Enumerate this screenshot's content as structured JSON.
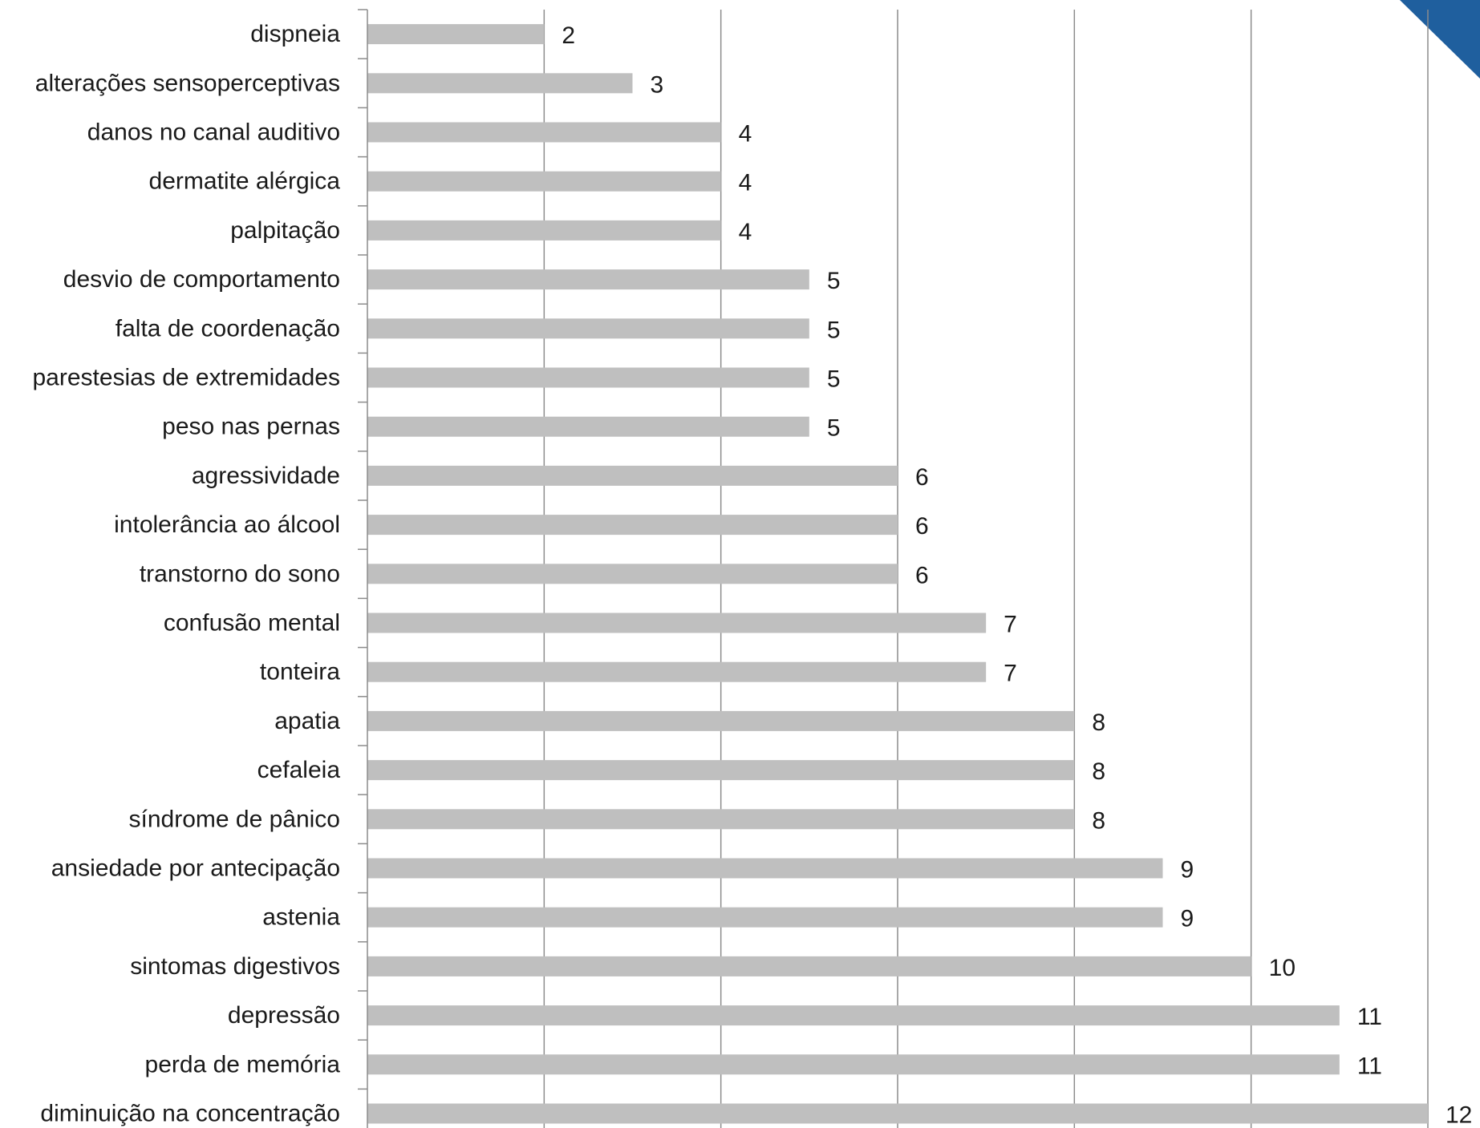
{
  "chart_data": {
    "type": "bar",
    "orientation": "horizontal",
    "title": "",
    "xlabel": "",
    "ylabel": "",
    "xlim": [
      0,
      12
    ],
    "grid": true,
    "gridline_step": 2,
    "bar_color": "#bfbfbf",
    "gridline_color": "#8c8c8c",
    "corner_accent_color": "#1f5f9e",
    "show_data_labels": true,
    "categories": [
      "dispneia",
      "alterações sensoperceptivas",
      "danos no canal auditivo",
      "dermatite alérgica",
      "palpitação",
      "desvio de comportamento",
      "falta de coordenação",
      "parestesias de extremidades",
      "peso nas pernas",
      "agressividade",
      "intolerância ao álcool",
      "transtorno do sono",
      "confusão mental",
      "tonteira",
      "apatia",
      "cefaleia",
      "síndrome de pânico",
      "ansiedade por antecipação",
      "astenia",
      "sintomas digestivos",
      "depressão",
      "perda de memória",
      "diminuição na concentração"
    ],
    "values": [
      2,
      3,
      4,
      4,
      4,
      5,
      5,
      5,
      5,
      6,
      6,
      6,
      7,
      7,
      8,
      8,
      8,
      9,
      9,
      10,
      11,
      11,
      12
    ]
  }
}
